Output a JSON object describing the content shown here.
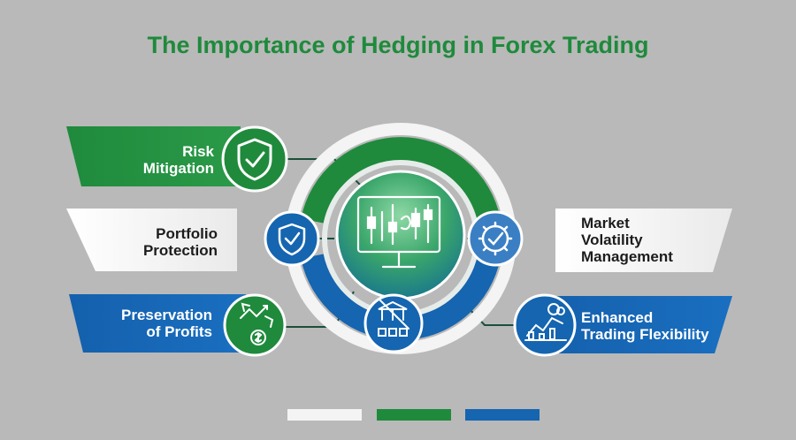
{
  "title": "The Importance of Hedging in Forex Trading",
  "colors": {
    "background": "#b9b9b9",
    "green": "#1f8a3c",
    "blue": "#1565b0",
    "white": "#f4f4f4",
    "title": "#1f8a3c"
  },
  "center": {
    "icon": "monitor-chart-icon"
  },
  "items": [
    {
      "lines": [
        "Risk",
        "Mitigation"
      ],
      "icon": "shield-check-icon",
      "color": "green"
    },
    {
      "lines": [
        "Portfolio",
        "Protection"
      ],
      "icon": "shield-check-icon",
      "color": "blue"
    },
    {
      "lines": [
        "Preservation",
        "of Profits"
      ],
      "icon": "money-growth-icon",
      "color": "green"
    },
    {
      "lines": [
        "Market",
        "Volatility",
        "Management"
      ],
      "icon": "gear-check-icon",
      "color": "blue"
    },
    {
      "lines": [
        "Enhanced",
        "Trading Flexibility"
      ],
      "icon": "market-chart-icon",
      "color": "blue"
    }
  ],
  "bottom_node": {
    "icon": "bank-chart-icon"
  },
  "legend_bars": [
    "white",
    "green",
    "blue"
  ]
}
